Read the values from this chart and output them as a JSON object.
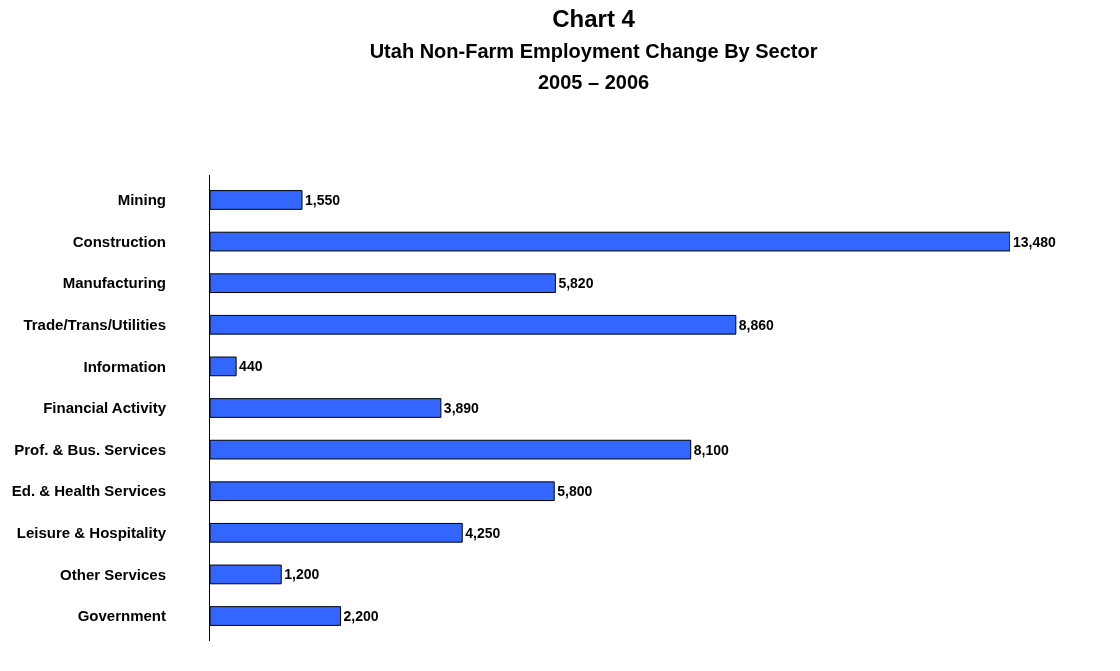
{
  "chart_data": {
    "type": "bar",
    "orientation": "horizontal",
    "title": "Chart 4",
    "subtitle": "Utah Non-Farm Employment Change By Sector\n2005 – 2006",
    "categories": [
      "Mining",
      "Construction",
      "Manufacturing",
      "Trade/Trans/Utilities",
      "Information",
      "Financial Activity",
      "Prof. & Bus. Services",
      "Ed. & Health Services",
      "Leisure & Hospitality",
      "Other Services",
      "Government"
    ],
    "values": [
      1550,
      13480,
      5820,
      8860,
      440,
      3890,
      8100,
      5800,
      4250,
      1200,
      2200
    ],
    "value_labels": [
      "1,550",
      "13,480",
      "5,820",
      "8,860",
      "440",
      "3,890",
      "8,100",
      "5,800",
      "4,250",
      "1,200",
      "2,200"
    ],
    "color": "#3366ff"
  }
}
